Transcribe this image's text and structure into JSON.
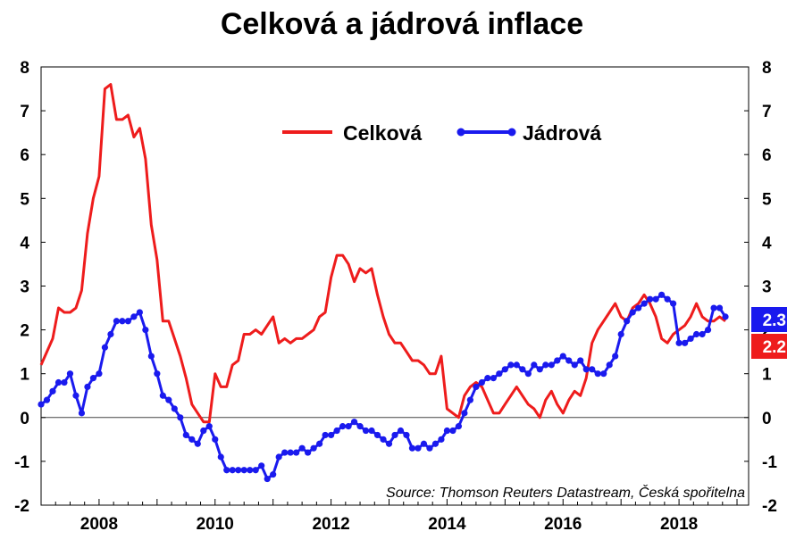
{
  "title": "Celková a jádrová inflace",
  "source": "Source: Thomson Reuters Datastream, Česká spořitelna",
  "colors": {
    "celkova": "#ee1c1c",
    "jadrova": "#1a1aee"
  },
  "chart_data": {
    "type": "line",
    "title": "Celková a jádrová inflace",
    "xlabel": "",
    "ylabel": "",
    "xlim": [
      2007.0,
      2019.2
    ],
    "ylim": [
      -2,
      8
    ],
    "x_ticks": [
      {
        "value": 2008,
        "label": "2008"
      },
      {
        "value": 2010,
        "label": "2010"
      },
      {
        "value": 2012,
        "label": "2012"
      },
      {
        "value": 2014,
        "label": "2014"
      },
      {
        "value": 2016,
        "label": "2016"
      },
      {
        "value": 2018,
        "label": "2018"
      }
    ],
    "y_ticks": [
      {
        "value": -2,
        "label": "-2"
      },
      {
        "value": -1,
        "label": "-1"
      },
      {
        "value": 0,
        "label": "0"
      },
      {
        "value": 1,
        "label": "1"
      },
      {
        "value": 2,
        "label": "2"
      },
      {
        "value": 3,
        "label": "3"
      },
      {
        "value": 4,
        "label": "4"
      },
      {
        "value": 5,
        "label": "5"
      },
      {
        "value": 6,
        "label": "6"
      },
      {
        "value": 7,
        "label": "7"
      },
      {
        "value": 8,
        "label": "8"
      }
    ],
    "grid": false,
    "legend": "top-center",
    "series": [
      {
        "name": "Celková",
        "color": "#ee1c1c",
        "markers": false,
        "label": "2.2",
        "x": [
          2007.0,
          2007.1,
          2007.2,
          2007.3,
          2007.4,
          2007.5,
          2007.6,
          2007.7,
          2007.8,
          2007.9,
          2008.0,
          2008.1,
          2008.2,
          2008.3,
          2008.4,
          2008.5,
          2008.6,
          2008.7,
          2008.8,
          2008.9,
          2009.0,
          2009.1,
          2009.2,
          2009.3,
          2009.4,
          2009.5,
          2009.6,
          2009.7,
          2009.8,
          2009.9,
          2010.0,
          2010.1,
          2010.2,
          2010.3,
          2010.4,
          2010.5,
          2010.6,
          2010.7,
          2010.8,
          2010.9,
          2011.0,
          2011.1,
          2011.2,
          2011.3,
          2011.4,
          2011.5,
          2011.6,
          2011.7,
          2011.8,
          2011.9,
          2012.0,
          2012.1,
          2012.2,
          2012.3,
          2012.4,
          2012.5,
          2012.6,
          2012.7,
          2012.8,
          2012.9,
          2013.0,
          2013.1,
          2013.2,
          2013.3,
          2013.4,
          2013.5,
          2013.6,
          2013.7,
          2013.8,
          2013.9,
          2014.0,
          2014.1,
          2014.2,
          2014.3,
          2014.4,
          2014.5,
          2014.6,
          2014.7,
          2014.8,
          2014.9,
          2015.0,
          2015.1,
          2015.2,
          2015.3,
          2015.4,
          2015.5,
          2015.6,
          2015.7,
          2015.8,
          2015.9,
          2016.0,
          2016.1,
          2016.2,
          2016.3,
          2016.4,
          2016.5,
          2016.6,
          2016.7,
          2016.8,
          2016.9,
          2017.0,
          2017.1,
          2017.2,
          2017.3,
          2017.4,
          2017.5,
          2017.6,
          2017.7,
          2017.8,
          2017.9,
          2018.0,
          2018.1,
          2018.2,
          2018.3,
          2018.4,
          2018.5,
          2018.6,
          2018.7,
          2018.8
        ],
        "y": [
          1.2,
          1.5,
          1.8,
          2.5,
          2.4,
          2.4,
          2.5,
          2.9,
          4.2,
          5.0,
          5.5,
          7.5,
          7.6,
          6.8,
          6.8,
          6.9,
          6.4,
          6.6,
          5.9,
          4.4,
          3.6,
          2.2,
          2.2,
          1.8,
          1.4,
          0.9,
          0.3,
          0.1,
          -0.1,
          -0.1,
          1.0,
          0.7,
          0.7,
          1.2,
          1.3,
          1.9,
          1.9,
          2.0,
          1.9,
          2.1,
          2.3,
          1.7,
          1.8,
          1.7,
          1.8,
          1.8,
          1.9,
          2.0,
          2.3,
          2.4,
          3.2,
          3.7,
          3.7,
          3.5,
          3.1,
          3.4,
          3.3,
          3.4,
          2.8,
          2.3,
          1.9,
          1.7,
          1.7,
          1.5,
          1.3,
          1.3,
          1.2,
          1.0,
          1.0,
          1.4,
          0.2,
          0.1,
          0.0,
          0.5,
          0.7,
          0.8,
          0.7,
          0.4,
          0.1,
          0.1,
          0.3,
          0.5,
          0.7,
          0.5,
          0.3,
          0.2,
          0.0,
          0.4,
          0.6,
          0.3,
          0.1,
          0.4,
          0.6,
          0.5,
          0.9,
          1.7,
          2.0,
          2.2,
          2.4,
          2.6,
          2.3,
          2.2,
          2.5,
          2.6,
          2.8,
          2.6,
          2.3,
          1.8,
          1.7,
          1.9,
          2.0,
          2.1,
          2.3,
          2.6,
          2.3,
          2.2,
          2.2,
          2.3,
          2.2
        ],
        "y_note": "red line"
      },
      {
        "name": "Jádrová",
        "color": "#1a1aee",
        "markers": true,
        "label": "2.3",
        "x": [
          2007.0,
          2007.1,
          2007.2,
          2007.3,
          2007.4,
          2007.5,
          2007.6,
          2007.7,
          2007.8,
          2007.9,
          2008.0,
          2008.1,
          2008.2,
          2008.3,
          2008.4,
          2008.5,
          2008.6,
          2008.7,
          2008.8,
          2008.9,
          2009.0,
          2009.1,
          2009.2,
          2009.3,
          2009.4,
          2009.5,
          2009.6,
          2009.7,
          2009.8,
          2009.9,
          2010.0,
          2010.1,
          2010.2,
          2010.3,
          2010.4,
          2010.5,
          2010.6,
          2010.7,
          2010.8,
          2010.9,
          2011.0,
          2011.1,
          2011.2,
          2011.3,
          2011.4,
          2011.5,
          2011.6,
          2011.7,
          2011.8,
          2011.9,
          2012.0,
          2012.1,
          2012.2,
          2012.3,
          2012.4,
          2012.5,
          2012.6,
          2012.7,
          2012.8,
          2012.9,
          2013.0,
          2013.1,
          2013.2,
          2013.3,
          2013.4,
          2013.5,
          2013.6,
          2013.7,
          2013.8,
          2013.9,
          2014.0,
          2014.1,
          2014.2,
          2014.3,
          2014.4,
          2014.5,
          2014.6,
          2014.7,
          2014.8,
          2014.9,
          2015.0,
          2015.1,
          2015.2,
          2015.3,
          2015.4,
          2015.5,
          2015.6,
          2015.7,
          2015.8,
          2015.9,
          2016.0,
          2016.1,
          2016.2,
          2016.3,
          2016.4,
          2016.5,
          2016.6,
          2016.7,
          2016.8,
          2016.9,
          2017.0,
          2017.1,
          2017.2,
          2017.3,
          2017.4,
          2017.5,
          2017.6,
          2017.7,
          2017.8,
          2017.9,
          2018.0,
          2018.1,
          2018.2,
          2018.3,
          2018.4,
          2018.5,
          2018.6,
          2018.7,
          2018.8
        ],
        "y": [
          0.3,
          0.4,
          0.6,
          0.8,
          0.8,
          1.0,
          0.5,
          0.1,
          0.7,
          0.9,
          1.0,
          1.6,
          1.9,
          2.2,
          2.2,
          2.2,
          2.3,
          2.4,
          2.0,
          1.4,
          1.0,
          0.5,
          0.4,
          0.2,
          0.0,
          -0.4,
          -0.5,
          -0.6,
          -0.3,
          -0.2,
          -0.5,
          -0.9,
          -1.2,
          -1.2,
          -1.2,
          -1.2,
          -1.2,
          -1.2,
          -1.1,
          -1.4,
          -1.3,
          -0.9,
          -0.8,
          -0.8,
          -0.8,
          -0.7,
          -0.8,
          -0.7,
          -0.6,
          -0.4,
          -0.4,
          -0.3,
          -0.2,
          -0.2,
          -0.1,
          -0.2,
          -0.3,
          -0.3,
          -0.4,
          -0.5,
          -0.6,
          -0.4,
          -0.3,
          -0.4,
          -0.7,
          -0.7,
          -0.6,
          -0.7,
          -0.6,
          -0.5,
          -0.3,
          -0.3,
          -0.2,
          0.1,
          0.4,
          0.7,
          0.8,
          0.9,
          0.9,
          1.0,
          1.1,
          1.2,
          1.2,
          1.1,
          1.0,
          1.2,
          1.1,
          1.2,
          1.2,
          1.3,
          1.4,
          1.3,
          1.2,
          1.3,
          1.1,
          1.1,
          1.0,
          1.0,
          1.2,
          1.4,
          1.9,
          2.2,
          2.4,
          2.5,
          2.6,
          2.7,
          2.7,
          2.8,
          2.7,
          2.6,
          1.7,
          1.7,
          1.8,
          1.9,
          1.9,
          2.0,
          2.5,
          2.5,
          2.3
        ]
      }
    ]
  }
}
